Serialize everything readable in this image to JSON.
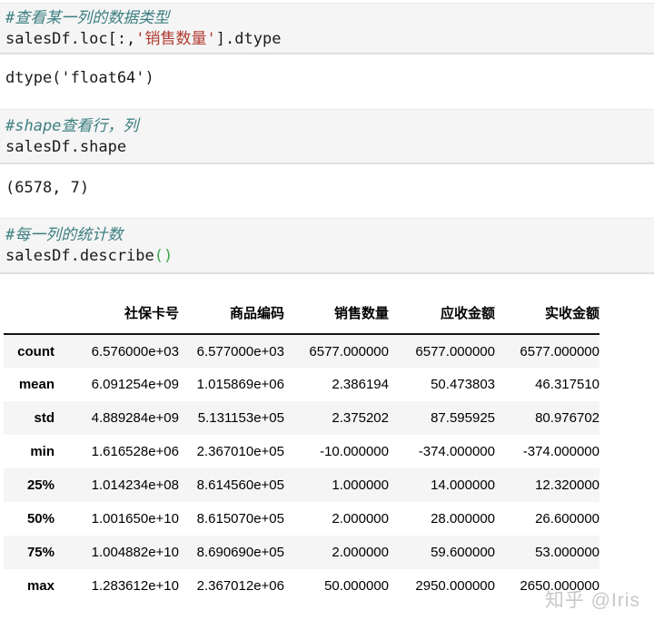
{
  "cells": [
    {
      "comment": "#查看某一列的数据类型",
      "code": {
        "pre": "salesDf.loc[:,",
        "string": "'销售数量'",
        "post": "].dtype"
      },
      "output": "dtype('float64')"
    },
    {
      "comment": "#shape查看行，列",
      "code": {
        "pre": "salesDf.shape"
      },
      "output": "(6578, 7)"
    },
    {
      "comment": "#每一列的统计数",
      "code": {
        "pre": "salesDf.describe",
        "paren": "()"
      }
    }
  ],
  "table": {
    "columns": [
      "社保卡号",
      "商品编码",
      "销售数量",
      "应收金额",
      "实收金额"
    ],
    "rows": [
      {
        "label": "count",
        "values": [
          "6.576000e+03",
          "6.577000e+03",
          "6577.000000",
          "6577.000000",
          "6577.000000"
        ]
      },
      {
        "label": "mean",
        "values": [
          "6.091254e+09",
          "1.015869e+06",
          "2.386194",
          "50.473803",
          "46.317510"
        ]
      },
      {
        "label": "std",
        "values": [
          "4.889284e+09",
          "5.131153e+05",
          "2.375202",
          "87.595925",
          "80.976702"
        ]
      },
      {
        "label": "min",
        "values": [
          "1.616528e+06",
          "2.367010e+05",
          "-10.000000",
          "-374.000000",
          "-374.000000"
        ]
      },
      {
        "label": "25%",
        "values": [
          "1.014234e+08",
          "8.614560e+05",
          "1.000000",
          "14.000000",
          "12.320000"
        ]
      },
      {
        "label": "50%",
        "values": [
          "1.001650e+10",
          "8.615070e+05",
          "2.000000",
          "28.000000",
          "26.600000"
        ]
      },
      {
        "label": "75%",
        "values": [
          "1.004882e+10",
          "8.690690e+05",
          "2.000000",
          "59.600000",
          "53.000000"
        ]
      },
      {
        "label": "max",
        "values": [
          "1.283612e+10",
          "2.367012e+06",
          "50.000000",
          "2950.000000",
          "2650.000000"
        ]
      }
    ]
  },
  "watermark": "知乎 @Iris",
  "colors": {
    "comment": "#3e7f80",
    "string": "#b13c32",
    "paren": "#3ea44c",
    "cell_background": "#f5f5f6",
    "row_stripe": "#f5f5f5",
    "header_rule": "#151515"
  }
}
